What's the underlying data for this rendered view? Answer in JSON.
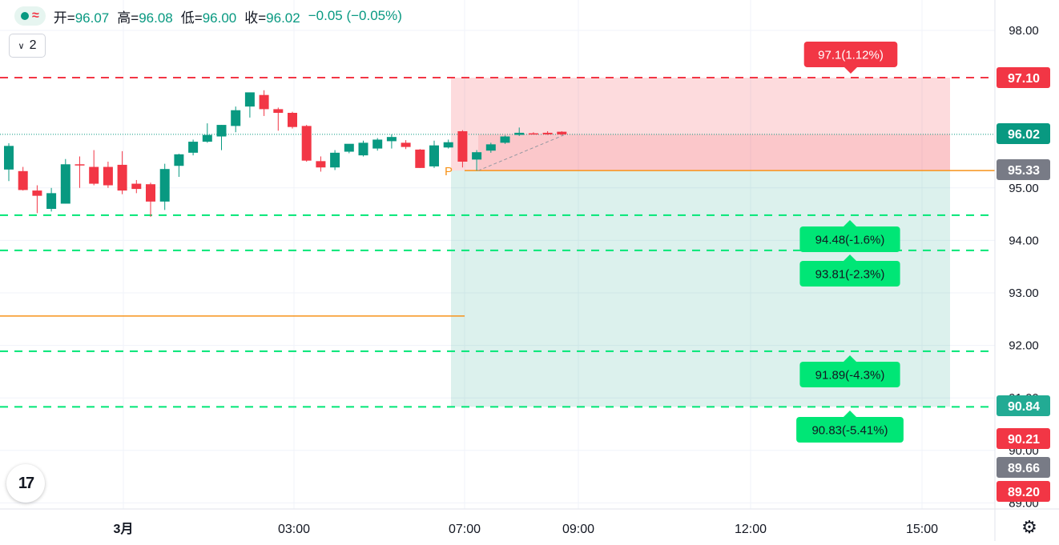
{
  "legend": {
    "open_label": "开=",
    "open": "96.07",
    "high_label": "高=",
    "high": "96.08",
    "low_label": "低=",
    "low": "96.00",
    "close_label": "收=",
    "close": "96.02",
    "change": "−0.05 (−0.05%)",
    "symbol_icon": "approx-icon"
  },
  "layers_button": {
    "label": "2"
  },
  "logo": {
    "text": "17"
  },
  "colors": {
    "up": "#089981",
    "down": "#f23645",
    "target": "#00e676",
    "stop": "#f23645",
    "orange": "#f7931a"
  },
  "chart_data": {
    "type": "candlestick",
    "price_axis": {
      "ticks": [
        "98.00",
        "95.00",
        "94.00",
        "93.00",
        "92.00",
        "91.00",
        "90.00",
        "89.00"
      ],
      "range": [
        88.8,
        98.4
      ]
    },
    "time_axis": {
      "ticks": [
        "3月",
        "03:00",
        "07:00",
        "09:00",
        "12:00",
        "15:00"
      ]
    },
    "candles": [
      {
        "o": 95.35,
        "h": 95.85,
        "l": 95.13,
        "c": 95.8
      },
      {
        "o": 95.32,
        "h": 95.4,
        "l": 94.95,
        "c": 94.96
      },
      {
        "o": 94.95,
        "h": 95.05,
        "l": 94.52,
        "c": 94.85
      },
      {
        "o": 94.6,
        "h": 95.0,
        "l": 94.55,
        "c": 94.9
      },
      {
        "o": 94.7,
        "h": 95.55,
        "l": 94.7,
        "c": 95.45
      },
      {
        "o": 95.45,
        "h": 95.6,
        "l": 95.0,
        "c": 95.43
      },
      {
        "o": 95.4,
        "h": 95.72,
        "l": 95.05,
        "c": 95.08
      },
      {
        "o": 95.4,
        "h": 95.5,
        "l": 95.0,
        "c": 95.05
      },
      {
        "o": 95.44,
        "h": 95.7,
        "l": 94.88,
        "c": 94.95
      },
      {
        "o": 95.08,
        "h": 95.15,
        "l": 94.9,
        "c": 94.98
      },
      {
        "o": 95.07,
        "h": 95.1,
        "l": 94.45,
        "c": 94.74
      },
      {
        "o": 94.74,
        "h": 95.46,
        "l": 94.58,
        "c": 95.36
      },
      {
        "o": 95.42,
        "h": 95.65,
        "l": 95.21,
        "c": 95.64
      },
      {
        "o": 95.67,
        "h": 95.92,
        "l": 95.62,
        "c": 95.88
      },
      {
        "o": 95.88,
        "h": 96.23,
        "l": 95.86,
        "c": 96.01
      },
      {
        "o": 95.98,
        "h": 96.2,
        "l": 95.72,
        "c": 96.2
      },
      {
        "o": 96.18,
        "h": 96.55,
        "l": 96.06,
        "c": 96.48
      },
      {
        "o": 96.55,
        "h": 96.8,
        "l": 96.34,
        "c": 96.82
      },
      {
        "o": 96.77,
        "h": 96.86,
        "l": 96.37,
        "c": 96.5
      },
      {
        "o": 96.5,
        "h": 96.53,
        "l": 96.09,
        "c": 96.43
      },
      {
        "o": 96.43,
        "h": 96.45,
        "l": 96.13,
        "c": 96.16
      },
      {
        "o": 96.18,
        "h": 96.2,
        "l": 95.5,
        "c": 95.52
      },
      {
        "o": 95.51,
        "h": 95.6,
        "l": 95.31,
        "c": 95.39
      },
      {
        "o": 95.39,
        "h": 95.72,
        "l": 95.34,
        "c": 95.67
      },
      {
        "o": 95.69,
        "h": 95.82,
        "l": 95.66,
        "c": 95.84
      },
      {
        "o": 95.62,
        "h": 95.9,
        "l": 95.6,
        "c": 95.86
      },
      {
        "o": 95.75,
        "h": 95.95,
        "l": 95.71,
        "c": 95.92
      },
      {
        "o": 95.89,
        "h": 96.02,
        "l": 95.75,
        "c": 95.97
      },
      {
        "o": 95.86,
        "h": 95.91,
        "l": 95.74,
        "c": 95.78
      },
      {
        "o": 95.73,
        "h": 95.74,
        "l": 95.38,
        "c": 95.38
      },
      {
        "o": 95.41,
        "h": 95.9,
        "l": 95.38,
        "c": 95.81
      },
      {
        "o": 95.77,
        "h": 95.92,
        "l": 95.75,
        "c": 95.87
      },
      {
        "o": 96.08,
        "h": 96.1,
        "l": 95.39,
        "c": 95.5
      },
      {
        "o": 95.54,
        "h": 95.72,
        "l": 95.33,
        "c": 95.68
      },
      {
        "o": 95.71,
        "h": 95.86,
        "l": 95.67,
        "c": 95.83
      },
      {
        "o": 95.86,
        "h": 96.0,
        "l": 95.84,
        "c": 95.98
      },
      {
        "o": 96.01,
        "h": 96.15,
        "l": 95.99,
        "c": 96.05
      },
      {
        "o": 96.04,
        "h": 96.06,
        "l": 96.02,
        "c": 96.03
      },
      {
        "o": 96.05,
        "h": 96.08,
        "l": 96.01,
        "c": 96.02
      },
      {
        "o": 96.07,
        "h": 96.08,
        "l": 96.0,
        "c": 96.02
      }
    ],
    "current_price": "96.02",
    "entry_price": "95.33",
    "stop_level": {
      "price": 97.1,
      "label": "97.1(1.12%)",
      "axis_label": "97.10"
    },
    "target_levels": [
      {
        "price": 94.48,
        "label": "94.48(-1.6%)"
      },
      {
        "price": 93.81,
        "label": "93.81(-2.3%)"
      },
      {
        "price": 91.89,
        "label": "91.89(-4.3%)"
      },
      {
        "price": 90.83,
        "label": "90.83(-5.41%)"
      }
    ],
    "axis_badges": [
      {
        "text": "97.10",
        "color": "#f23645"
      },
      {
        "text": "96.02",
        "color": "#089981"
      },
      {
        "text": "95.33",
        "color": "#787b86"
      },
      {
        "text": "90.84",
        "color": "#22ab94"
      },
      {
        "text": "90.21",
        "color": "#f23645"
      },
      {
        "text": "89.66",
        "color": "#787b86"
      },
      {
        "text": "89.20",
        "color": "#f23645"
      }
    ],
    "orange_line_price": 92.56,
    "pivot_label": "P"
  }
}
